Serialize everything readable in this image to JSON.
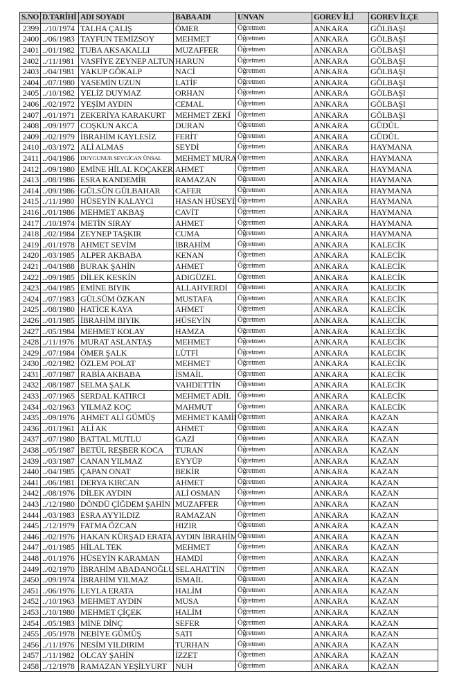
{
  "headers": [
    "S.NO",
    "D.TARİHİ",
    "ADI SOYADI",
    "BABA ADI",
    "UNVAN",
    "GOREV İLİ",
    "GOREV İLÇE"
  ],
  "rows": [
    [
      "2399",
      "../10/1974",
      "TALHA ÇALIŞ",
      "ÖMER",
      "Öğretmen",
      "ANKARA",
      "GÖLBAŞI"
    ],
    [
      "2400",
      "../06/1983",
      "TAYFUN TEMİZSOY",
      "MEHMET",
      "Öğretmen",
      "ANKARA",
      "GÖLBAŞI"
    ],
    [
      "2401",
      "../01/1982",
      "TUBA AKSAKALLI",
      "MUZAFFER",
      "Öğretmen",
      "ANKARA",
      "GÖLBAŞI"
    ],
    [
      "2402",
      "../11/1981",
      "VASFİYE ZEYNEP ALTUN",
      "HARUN",
      "Öğretmen",
      "ANKARA",
      "GÖLBAŞI"
    ],
    [
      "2403",
      "../04/1981",
      "YAKUP GÖKALP",
      "NACİ",
      "Öğretmen",
      "ANKARA",
      "GÖLBAŞI"
    ],
    [
      "2404",
      "../07/1980",
      "YASEMİN UZUN",
      "LATİF",
      "Öğretmen",
      "ANKARA",
      "GÖLBAŞI"
    ],
    [
      "2405",
      "../10/1982",
      "YELİZ DUYMAZ",
      "ORHAN",
      "Öğretmen",
      "ANKARA",
      "GÖLBAŞI"
    ],
    [
      "2406",
      "../02/1972",
      "YEŞİM AYDIN",
      "CEMAL",
      "Öğretmen",
      "ANKARA",
      "GÖLBAŞI"
    ],
    [
      "2407",
      "../01/1971",
      "ZEKERİYA KARAKURT",
      "MEHMET ZEKİ",
      "Öğretmen",
      "ANKARA",
      "GÖLBAŞI"
    ],
    [
      "2408",
      "../09/1977",
      "COŞKUN AKCA",
      "DURAN",
      "Öğretmen",
      "ANKARA",
      "GÜDÜL"
    ],
    [
      "2409",
      "../02/1979",
      "İBRAHİM KAYLESİZ",
      "FERİT",
      "Öğretmen",
      "ANKARA",
      "GÜDÜL"
    ],
    [
      "2410",
      "../03/1972",
      "ALİ ALMAS",
      "SEYDİ",
      "Öğretmen",
      "ANKARA",
      "HAYMANA"
    ],
    [
      "2411",
      "../04/1986",
      "DUYGUNUR SEVGİCAN ÜNSAL",
      "MEHMET MURAT",
      "Öğretmen",
      "ANKARA",
      "HAYMANA"
    ],
    [
      "2412",
      "../09/1980",
      "EMİNE HİLAL KOÇAKER",
      "AHMET",
      "Öğretmen",
      "ANKARA",
      "HAYMANA"
    ],
    [
      "2413",
      "../08/1986",
      "ESRA KANDEMİR",
      "RAMAZAN",
      "Öğretmen",
      "ANKARA",
      "HAYMANA"
    ],
    [
      "2414",
      "../09/1986",
      "GÜLSÜN GÜLBAHAR",
      "CAFER",
      "Öğretmen",
      "ANKARA",
      "HAYMANA"
    ],
    [
      "2415",
      "../11/1980",
      "HÜSEYİN KALAYCI",
      "HASAN HÜSEYİN",
      "Öğretmen",
      "ANKARA",
      "HAYMANA"
    ],
    [
      "2416",
      "../01/1986",
      "MEHMET AKBAŞ",
      "CAVİT",
      "Öğretmen",
      "ANKARA",
      "HAYMANA"
    ],
    [
      "2417",
      "../10/1974",
      "METİN SIRAY",
      "AHMET",
      "Öğretmen",
      "ANKARA",
      "HAYMANA"
    ],
    [
      "2418",
      "../02/1984",
      "ZEYNEP TAŞKIR",
      "CUMA",
      "Öğretmen",
      "ANKARA",
      "HAYMANA"
    ],
    [
      "2419",
      "../01/1978",
      "AHMET SEVİM",
      "İBRAHİM",
      "Öğretmen",
      "ANKARA",
      "KALECİK"
    ],
    [
      "2420",
      "../03/1985",
      "ALPER AKBABA",
      "KENAN",
      "Öğretmen",
      "ANKARA",
      "KALECİK"
    ],
    [
      "2421",
      "../04/1988",
      "BURAK ŞAHİN",
      "AHMET",
      "Öğretmen",
      "ANKARA",
      "KALECİK"
    ],
    [
      "2422",
      "../09/1985",
      "DİLEK KESKİN",
      "ADIGÜZEL",
      "Öğretmen",
      "ANKARA",
      "KALECİK"
    ],
    [
      "2423",
      "../04/1985",
      "EMİNE BIYIK",
      "ALLAHVERDİ",
      "Öğretmen",
      "ANKARA",
      "KALECİK"
    ],
    [
      "2424",
      "../07/1983",
      "GÜLSÜM ÖZKAN",
      "MUSTAFA",
      "Öğretmen",
      "ANKARA",
      "KALECİK"
    ],
    [
      "2425",
      "../08/1980",
      "HATİCE KAYA",
      "AHMET",
      "Öğretmen",
      "ANKARA",
      "KALECİK"
    ],
    [
      "2426",
      "../01/1985",
      "İBRAHİM BIYIK",
      "HÜSEYİN",
      "Öğretmen",
      "ANKARA",
      "KALECİK"
    ],
    [
      "2427",
      "../05/1984",
      "MEHMET KOLAY",
      "HAMZA",
      "Öğretmen",
      "ANKARA",
      "KALECİK"
    ],
    [
      "2428",
      "../11/1976",
      "MURAT ASLANTAŞ",
      "MEHMET",
      "Öğretmen",
      "ANKARA",
      "KALECİK"
    ],
    [
      "2429",
      "../07/1984",
      "ÖMER ŞALK",
      "LÜTFİ",
      "Öğretmen",
      "ANKARA",
      "KALECİK"
    ],
    [
      "2430",
      "../02/1982",
      "ÖZLEM POLAT",
      "MEHMET",
      "Öğretmen",
      "ANKARA",
      "KALECİK"
    ],
    [
      "2431",
      "../07/1987",
      "RABİA AKBABA",
      "İSMAİL",
      "Öğretmen",
      "ANKARA",
      "KALECİK"
    ],
    [
      "2432",
      "../08/1987",
      "SELMA ŞALK",
      "VAHDETTİN",
      "Öğretmen",
      "ANKARA",
      "KALECİK"
    ],
    [
      "2433",
      "../07/1965",
      "SERDAL KATIRCI",
      "MEHMET ADİL",
      "Öğretmen",
      "ANKARA",
      "KALECİK"
    ],
    [
      "2434",
      "../02/1963",
      "YILMAZ KOÇ",
      "MAHMUT",
      "Öğretmen",
      "ANKARA",
      "KALECİK"
    ],
    [
      "2435",
      "../09/1976",
      "AHMET ALİ GÜMÜŞ",
      "MEHMET KAMİL",
      "Öğretmen",
      "ANKARA",
      "KAZAN"
    ],
    [
      "2436",
      "../01/1961",
      "ALİ AK",
      "AHMET",
      "Öğretmen",
      "ANKARA",
      "KAZAN"
    ],
    [
      "2437",
      "../07/1980",
      "BATTAL MUTLU",
      "GAZİ",
      "Öğretmen",
      "ANKARA",
      "KAZAN"
    ],
    [
      "2438",
      "../05/1987",
      "BETÜL REŞBER KOCA",
      "TURAN",
      "Öğretmen",
      "ANKARA",
      "KAZAN"
    ],
    [
      "2439",
      "../03/1987",
      "CANAN YILMAZ",
      "EYYÜP",
      "Öğretmen",
      "ANKARA",
      "KAZAN"
    ],
    [
      "2440",
      "../04/1985",
      "ÇAPAN ONAT",
      "BEKİR",
      "Öğretmen",
      "ANKARA",
      "KAZAN"
    ],
    [
      "2441",
      "../06/1981",
      "DERYA KIRCAN",
      "AHMET",
      "Öğretmen",
      "ANKARA",
      "KAZAN"
    ],
    [
      "2442",
      "../08/1976",
      "DİLEK AYDIN",
      "ALİ OSMAN",
      "Öğretmen",
      "ANKARA",
      "KAZAN"
    ],
    [
      "2443",
      "../12/1980",
      "DÖNDÜ ÇİĞDEM ŞAHİN",
      "MUZAFFER",
      "Öğretmen",
      "ANKARA",
      "KAZAN"
    ],
    [
      "2444",
      "../03/1983",
      "ESRA AYYILDIZ",
      "RAMAZAN",
      "Öğretmen",
      "ANKARA",
      "KAZAN"
    ],
    [
      "2445",
      "../12/1979",
      "FATMA ÖZCAN",
      "HIZIR",
      "Öğretmen",
      "ANKARA",
      "KAZAN"
    ],
    [
      "2446",
      "../02/1976",
      "HAKAN KÜRŞAD ERATA",
      "AYDIN İBRAHİM",
      "Öğretmen",
      "ANKARA",
      "KAZAN"
    ],
    [
      "2447",
      "../01/1985",
      "HİLAL TEK",
      "MEHMET",
      "Öğretmen",
      "ANKARA",
      "KAZAN"
    ],
    [
      "2448",
      "../01/1976",
      "HÜSEYİN KARAMAN",
      "HAMDİ",
      "Öğretmen",
      "ANKARA",
      "KAZAN"
    ],
    [
      "2449",
      "../02/1970",
      "İBRAHİM ABADANOĞLU",
      "SELAHATTİN",
      "Öğretmen",
      "ANKARA",
      "KAZAN"
    ],
    [
      "2450",
      "../09/1974",
      "İBRAHİM YILMAZ",
      "İSMAİL",
      "Öğretmen",
      "ANKARA",
      "KAZAN"
    ],
    [
      "2451",
      "../06/1976",
      "LEYLA ERATA",
      "HALİM",
      "Öğretmen",
      "ANKARA",
      "KAZAN"
    ],
    [
      "2452",
      "../10/1963",
      "MEHMET AYDIN",
      "MUSA",
      "Öğretmen",
      "ANKARA",
      "KAZAN"
    ],
    [
      "2453",
      "../10/1980",
      "MEHMET ÇİÇEK",
      "HALİM",
      "Öğretmen",
      "ANKARA",
      "KAZAN"
    ],
    [
      "2454",
      "../05/1983",
      "MİNE DİNÇ",
      "SEFER",
      "Öğretmen",
      "ANKARA",
      "KAZAN"
    ],
    [
      "2455",
      "../05/1978",
      "NEBİYE GÜMÜŞ",
      "SATI",
      "Öğretmen",
      "ANKARA",
      "KAZAN"
    ],
    [
      "2456",
      "../11/1976",
      "NESİM YILDIRIM",
      "TURHAN",
      "Öğretmen",
      "ANKARA",
      "KAZAN"
    ],
    [
      "2457",
      "../11/1982",
      "OLCAY ŞAHİN",
      "İZZET",
      "Öğretmen",
      "ANKARA",
      "KAZAN"
    ],
    [
      "2458",
      "../12/1978",
      "RAMAZAN YEŞİLYURT",
      "NUH",
      "Öğretmen",
      "ANKARA",
      "KAZAN"
    ]
  ]
}
